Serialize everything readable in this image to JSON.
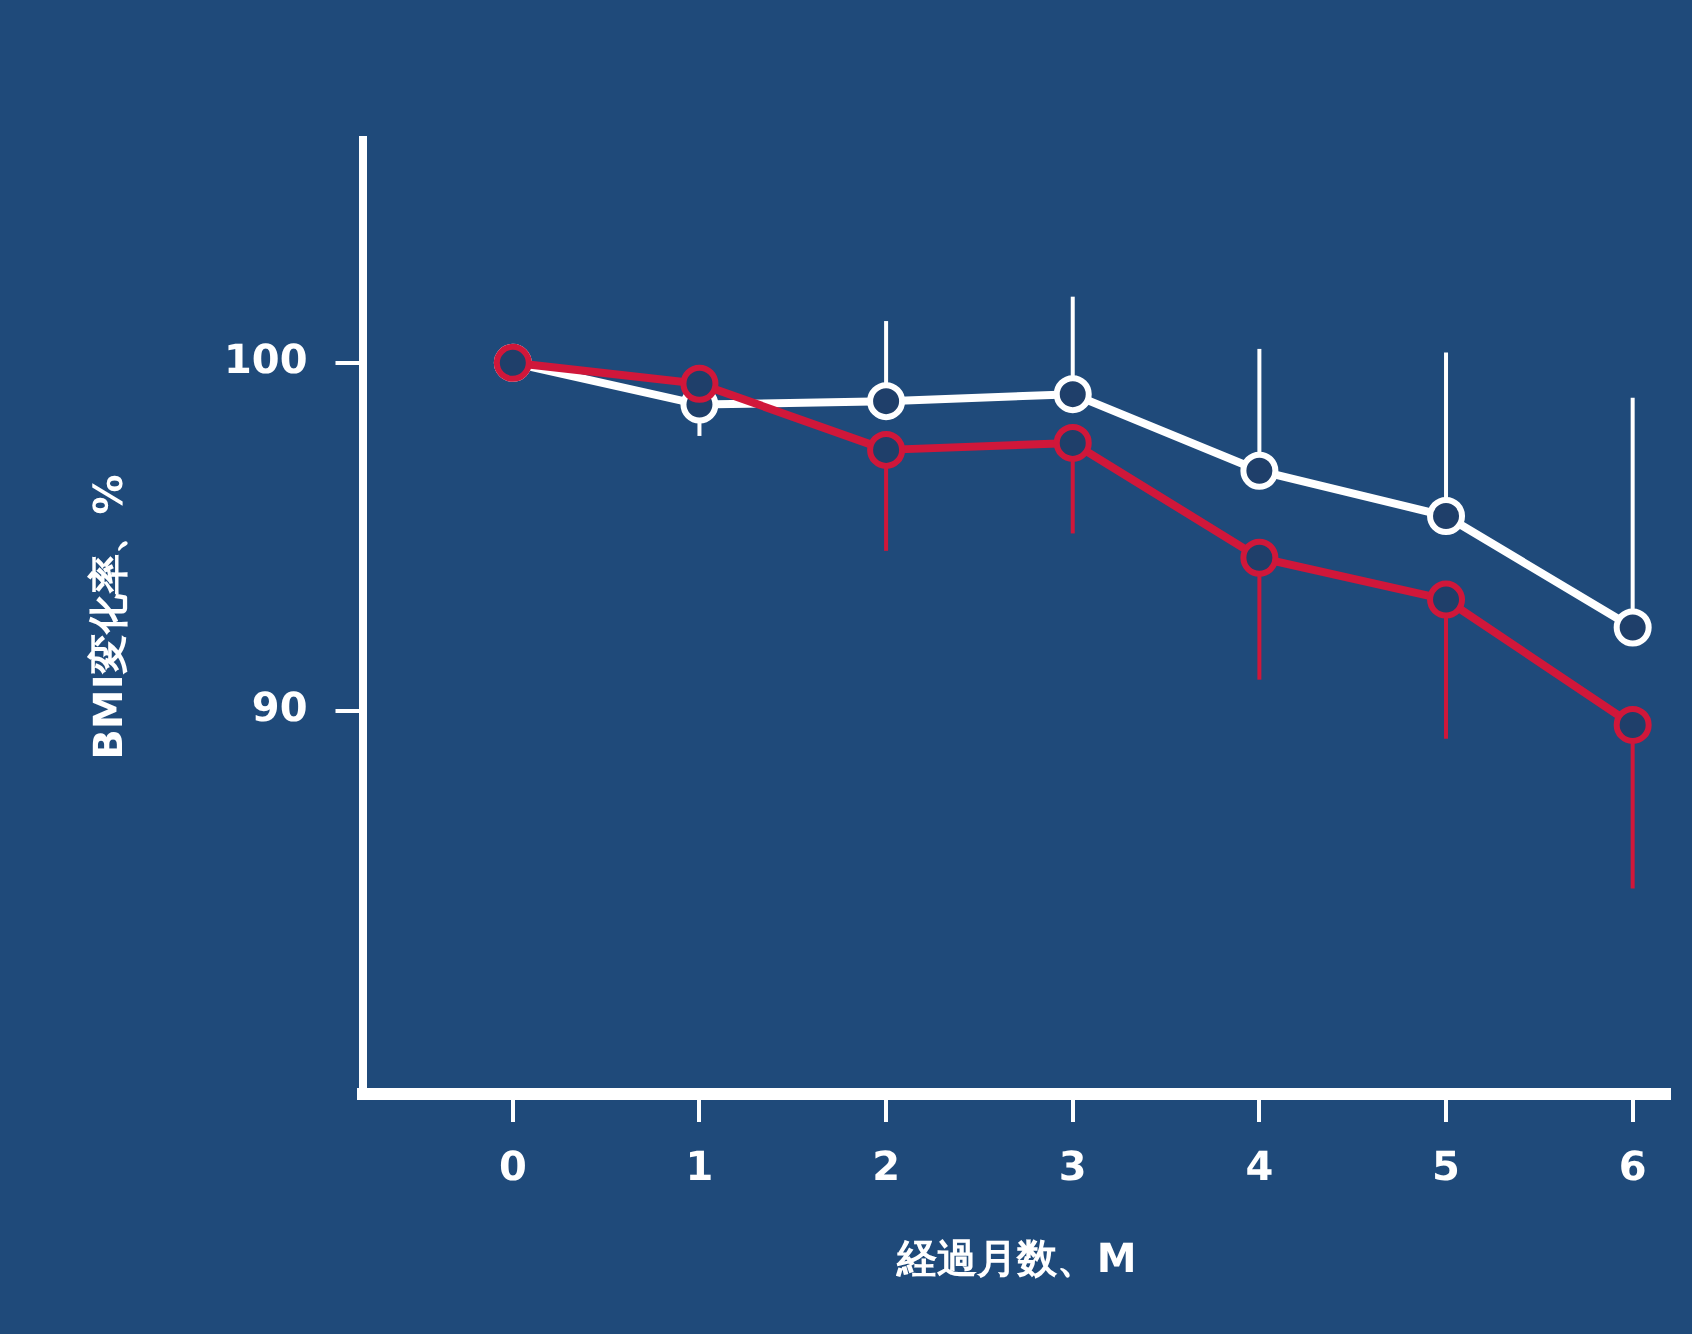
{
  "chart_data": {
    "type": "line",
    "xlabel": "経過月数、M",
    "ylabel": "BMI変化率、%",
    "x": [
      0,
      1,
      2,
      3,
      4,
      5,
      6
    ],
    "xlim": [
      -0.8,
      6.2
    ],
    "xticks": [
      0,
      1,
      2,
      3,
      4,
      5,
      6
    ],
    "ylim": [
      79,
      106.4
    ],
    "yticks": [
      90,
      100
    ],
    "grid": false,
    "legend": false,
    "marker": "circle",
    "line_style": "solid",
    "series": [
      {
        "color": "#d0173a",
        "values": [
          100,
          99.4,
          97.5,
          97.7,
          94.4,
          93.2,
          89.6
        ],
        "errors": [
          null,
          [
            98.9,
            99.4
          ],
          [
            94.6,
            97.5
          ],
          [
            95.1,
            97.7
          ],
          [
            90.9,
            94.4
          ],
          [
            89.2,
            93.2
          ],
          [
            84.9,
            89.6
          ]
        ]
      },
      {
        "color": "#ffffff",
        "values": [
          100,
          98.8,
          98.9,
          99.1,
          96.9,
          95.6,
          92.4
        ],
        "errors": [
          null,
          [
            97.9,
            98.8
          ],
          [
            98.9,
            101.2
          ],
          [
            99.1,
            101.9
          ],
          [
            96.9,
            100.4
          ],
          [
            95.6,
            100.3
          ],
          [
            92.4,
            99.0
          ]
        ]
      }
    ]
  }
}
